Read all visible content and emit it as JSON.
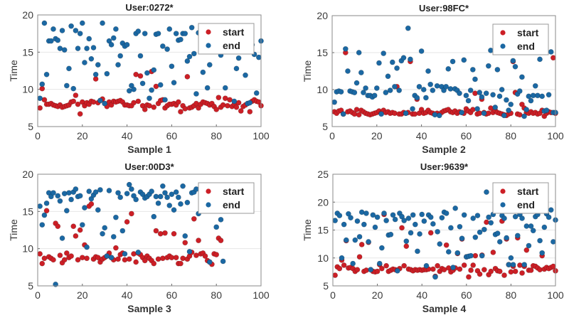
{
  "colors": {
    "start": "#cc1f26",
    "end": "#1b68a3"
  },
  "chart_data": [
    {
      "type": "scatter",
      "title": "User:0272*",
      "xlabel": "Sample 1",
      "ylabel": "Time",
      "xlim": [
        0,
        100
      ],
      "ylim": [
        5,
        20
      ],
      "xticks": [
        "0",
        "20",
        "40",
        "60",
        "80",
        "100"
      ],
      "yticks": [
        "5",
        "10",
        "15",
        "20"
      ],
      "grid": "horizontal",
      "legend": "top-right",
      "series": [
        {
          "name": "start",
          "x_from": 1,
          "values": [
            7.5,
            10.1,
            8.6,
            8,
            8,
            8.1,
            7.9,
            7.8,
            7.7,
            7.9,
            7.6,
            7.7,
            7.8,
            7.9,
            8.3,
            8.4,
            9.2,
            8,
            6.7,
            8.3,
            7.8,
            8.2,
            8,
            8.4,
            8.3,
            11.4,
            8.2,
            8.5,
            8.7,
            8.1,
            7.7,
            8.3,
            7.9,
            8.4,
            8.3,
            8.4,
            8.5,
            8.3,
            7.9,
            7.9,
            7.8,
            7.8,
            8.2,
            12,
            8.4,
            11.8,
            7.8,
            7.3,
            7.9,
            7.8,
            12.4,
            7.6,
            10.4,
            8.1,
            8.5,
            8.6,
            7.5,
            7.8,
            8,
            8,
            8.1,
            7.9,
            8.3,
            7,
            7.8,
            7.4,
            11.7,
            7.5,
            7.6,
            7.8,
            8.1,
            7.5,
            8,
            8.3,
            8.2,
            8.1,
            7.9,
            8.1,
            7.7,
            7.3,
            8.9,
            7.6,
            7.9,
            8.8,
            7.8,
            8.6,
            7.7,
            8,
            7.6,
            8.2,
            7.1,
            7.7,
            7.9,
            8.1,
            7,
            8.4,
            8.6,
            8.4,
            8.3,
            7.8
          ]
        },
        {
          "name": "end",
          "x_from": 1,
          "values": [
            8.8,
            10.7,
            18.9,
            12,
            16.5,
            16.5,
            18.1,
            16.8,
            16.6,
            15.5,
            17.9,
            15.3,
            10.5,
            12.8,
            18.5,
            10.1,
            17.9,
            15.5,
            17.5,
            18.9,
            13.6,
            15.5,
            16.8,
            14.1,
            15.6,
            12,
            13.3,
            8.5,
            18.9,
            8.1,
            12.1,
            16.5,
            16,
            16.9,
            18.1,
            13.3,
            14.5,
            16.2,
            15.8,
            16,
            9.8,
            10.5,
            10,
            17.5,
            17.8,
            14.5,
            10.8,
            17.5,
            12.2,
            8.8,
            9.9,
            12.6,
            17.4,
            17.5,
            10.6,
            15.8,
            8.6,
            15.4,
            18.1,
            13.1,
            10.9,
            17.5,
            16.6,
            16.7,
            17.5,
            17.5,
            13.8,
            14.4,
            18.3,
            14.8,
            9.4,
            17.6,
            18.2,
            12.3,
            15.6,
            10.2,
            13.3,
            17,
            16.5,
            15.8,
            16.5,
            14.6,
            17.5,
            10.2,
            16.9,
            17.3,
            15.9,
            8.4,
            12.8,
            14.2,
            16.8,
            17.5,
            11.9,
            8.1,
            8.2,
            16,
            14.7,
            9.5,
            14.3,
            16.5
          ]
        }
      ]
    },
    {
      "type": "scatter",
      "title": "User:98FC*",
      "xlabel": "Sample 2",
      "ylabel": "Time",
      "xlim": [
        0,
        100
      ],
      "ylim": [
        5,
        20
      ],
      "xticks": [
        "0",
        "20",
        "40",
        "60",
        "80",
        "100"
      ],
      "yticks": [
        "5",
        "10",
        "15",
        "20"
      ],
      "grid": "horizontal",
      "legend": "top-right",
      "series": [
        {
          "name": "start",
          "x_from": 1,
          "values": [
            7,
            6.8,
            7.1,
            7.2,
            6.7,
            15,
            7,
            7.1,
            6.9,
            6.7,
            7.3,
            6.6,
            7.2,
            7,
            6.8,
            6.7,
            6.6,
            6.7,
            6.8,
            6.9,
            7.1,
            6.8,
            7.2,
            6.9,
            7,
            6.8,
            6.9,
            6.8,
            10.4,
            6.7,
            6.7,
            6.9,
            6.8,
            6.9,
            13.8,
            6.7,
            6.7,
            8.7,
            6.8,
            7.3,
            6.8,
            6.9,
            7.2,
            6.9,
            6.8,
            6.7,
            6.8,
            6.6,
            6.9,
            7.1,
            7.2,
            7.3,
            7,
            6.9,
            7.1,
            6.8,
            7,
            6.9,
            6.8,
            7.4,
            7.1,
            6.9,
            7.3,
            9.5,
            6.7,
            6.8,
            8.7,
            6.9,
            6.7,
            6.8,
            7.5,
            6.9,
            7.2,
            6.9,
            6.8,
            6.7,
            6.6,
            6.5,
            6.7,
            6.8,
            13.8,
            9.6,
            6.7,
            6.6,
            8,
            7.5,
            6.9,
            6.8,
            7,
            6.8,
            6.9,
            6.7,
            6.8,
            7.2,
            6.4,
            6.8,
            7,
            6.9,
            14.3,
            6.8
          ]
        },
        {
          "name": "end",
          "x_from": 1,
          "values": [
            8.3,
            9.7,
            9.8,
            9.7,
            6.7,
            15.5,
            12.5,
            9.8,
            9.7,
            9.6,
            10.9,
            15,
            12.3,
            9.6,
            10.2,
            9.2,
            9.2,
            9,
            9.2,
            10.2,
            13.6,
            6.7,
            14.9,
            9.6,
            11.8,
            9.9,
            13.7,
            10.4,
            12.9,
            9.9,
            13.9,
            14.3,
            6.8,
            18.3,
            14.1,
            7.4,
            9.2,
            8.9,
            10.4,
            15.2,
            10,
            8.9,
            12.5,
            10.7,
            9.9,
            6.6,
            10.5,
            6.5,
            10.4,
            9.9,
            10.4,
            12.8,
            10.1,
            13.8,
            10.1,
            9.9,
            9.5,
            6.9,
            14,
            9.2,
            8.5,
            9.9,
            12.7,
            11.4,
            7.4,
            9.6,
            9,
            6.8,
            9.5,
            13.2,
            15.3,
            9.3,
            7.6,
            12.7,
            9.1,
            10,
            6.5,
            8.6,
            7.2,
            8,
            13.9,
            13.1,
            9.4,
            9.8,
            11.7,
            6.4,
            7.3,
            9.1,
            8.5,
            9.2,
            10.5,
            9.2,
            14.1,
            9.1,
            7.1,
            7.2,
            9.3,
            15.1,
            6.9,
            6.9
          ]
        }
      ]
    },
    {
      "type": "scatter",
      "title": "User:00D3*",
      "xlabel": "Sample 3",
      "ylabel": "Time",
      "xlim": [
        0,
        100
      ],
      "ylim": [
        5,
        20
      ],
      "xticks": [
        "0",
        "20",
        "40",
        "60",
        "80",
        "100"
      ],
      "yticks": [
        "5",
        "10",
        "15",
        "20"
      ],
      "grid": "horizontal",
      "legend": "top-right",
      "series": [
        {
          "name": "start",
          "x_from": 1,
          "values": [
            9.3,
            8,
            8.7,
            15.1,
            8.9,
            8.7,
            8.5,
            13.4,
            13,
            9.1,
            8.1,
            8.5,
            9.4,
            8.8,
            9,
            13,
            11.7,
            8.5,
            12.5,
            8.8,
            10.5,
            8.7,
            15.7,
            16,
            8.6,
            8.9,
            8.8,
            8.2,
            8.6,
            8.8,
            9,
            9.4,
            8.8,
            8.5,
            10.1,
            8.6,
            9.2,
            9.4,
            8.5,
            13.6,
            8.6,
            14.7,
            9.3,
            8.2,
            9.4,
            9.2,
            8.8,
            8.4,
            9,
            8.7,
            8.4,
            8,
            12.4,
            8.6,
            12,
            8.7,
            12.1,
            8.8,
            9,
            8.8,
            12,
            8.8,
            8,
            8,
            8.7,
            10.8,
            8.6,
            9,
            9.5,
            14,
            9.1,
            11.1,
            9.3,
            9.4,
            9,
            8.4,
            8.2,
            7.9,
            9.3,
            9.2,
            11.4,
            11.1
          ]
        },
        {
          "name": "end",
          "x_from": 1,
          "values": [
            15.7,
            13.2,
            14.5,
            16.1,
            17.5,
            17,
            17.5,
            5.2,
            17.1,
            16.4,
            11.4,
            17.4,
            15.1,
            17.5,
            16.6,
            17.6,
            18,
            17,
            17.1,
            13.2,
            15.5,
            10.2,
            17.7,
            16.7,
            17.2,
            17.6,
            15.2,
            17.9,
            12,
            12.8,
            9,
            17.8,
            8.8,
            11.6,
            14.2,
            17.5,
            16.9,
            12.4,
            9.3,
            17.4,
            18.6,
            18,
            17.1,
            16.6,
            9.5,
            17.6,
            17.3,
            16.8,
            17,
            17.3,
            17.7,
            14.3,
            17,
            16.1,
            17,
            18.4,
            17.5,
            16.9,
            15.8,
            17.3,
            15.2,
            17.6,
            16.9,
            16,
            18.4,
            11.7,
            16.2,
            9.6,
            17.5,
            17.6,
            18,
            14.7,
            17.9,
            17.5,
            17.2,
            17,
            8.2,
            16.5,
            17.2,
            12.9,
            17.5,
            13.9,
            8.3
          ]
        }
      ]
    },
    {
      "type": "scatter",
      "title": "User:9639*",
      "xlabel": "Sample 4",
      "ylabel": "Time",
      "xlim": [
        0,
        100
      ],
      "ylim": [
        5,
        25
      ],
      "xticks": [
        "0",
        "20",
        "40",
        "60",
        "80",
        "100"
      ],
      "yticks": [
        "5",
        "10",
        "15",
        "20",
        "25"
      ],
      "grid": "horizontal",
      "legend": "top-right",
      "series": [
        {
          "name": "start",
          "x_from": 1,
          "values": [
            6.9,
            8.4,
            8.1,
            9.6,
            8.7,
            13.1,
            8.2,
            8.3,
            8.1,
            7.6,
            7.9,
            10.2,
            12.4,
            7.6,
            7.8,
            12.8,
            7.9,
            7.6,
            7.5,
            7.6,
            8.8,
            8.1,
            17.8,
            8.6,
            7.6,
            7.8,
            8,
            7.9,
            7.8,
            8.1,
            15.4,
            8.6,
            12.1,
            8,
            7.9,
            7.7,
            7.9,
            7.8,
            7.9,
            7.8,
            7.9,
            7.9,
            8,
            14.5,
            8,
            6.7,
            8.6,
            7.6,
            8.1,
            7.9,
            12.3,
            8.2,
            7.5,
            7.8,
            8.2,
            10.8,
            8,
            13.4,
            8.7,
            10.2,
            6.6,
            7.8,
            8.7,
            10.4,
            7.7,
            7.1,
            10.5,
            7.9,
            16.4,
            7,
            7.6,
            11,
            8.1,
            7.7,
            7.6,
            16.6,
            6.9,
            13.4,
            8.8,
            7.5,
            8.5,
            7.6,
            13.6,
            8.7,
            7.3,
            8.5,
            11.4,
            7.8,
            7.8,
            8.6,
            8.5,
            8.2,
            7.9,
            10.4,
            8,
            8.3,
            8.1,
            8.3,
            8.5,
            7.7
          ]
        },
        {
          "name": "end",
          "x_from": 1,
          "values": [
            16.7,
            18,
            17.6,
            10,
            16,
            13.2,
            17.9,
            17.2,
            9,
            13.2,
            16.6,
            13.8,
            18.2,
            16,
            18,
            12.9,
            7.9,
            17.7,
            15.5,
            17.3,
            9,
            11.8,
            18,
            16.7,
            14.1,
            14.2,
            17.7,
            16.9,
            7.7,
            18,
            17.4,
            16.7,
            13,
            17.1,
            14.5,
            17.7,
            16,
            11.2,
            14.3,
            17.8,
            16.6,
            8.6,
            17.7,
            17.3,
            16.1,
            6.6,
            14.7,
            12.5,
            17.2,
            18.2,
            18,
            11.1,
            15.4,
            8.3,
            18.9,
            10.9,
            15.6,
            13.5,
            17.7,
            10.2,
            10.3,
            10.4,
            17.1,
            13.7,
            17.6,
            14.6,
            10.4,
            15.1,
            21.8,
            17.3,
            16.3,
            17.8,
            14.2,
            14.4,
            12.9,
            17.6,
            17.1,
            13.6,
            8.8,
            10,
            8.8,
            17.4,
            14,
            17.8,
            17.1,
            8.8,
            15.7,
            12.2,
            15.7,
            14.9,
            17.4,
            17.8,
            13.1,
            10.9,
            15.5,
            17.9,
            17.3,
            18.6,
            12.9,
            16.8
          ]
        }
      ]
    }
  ]
}
